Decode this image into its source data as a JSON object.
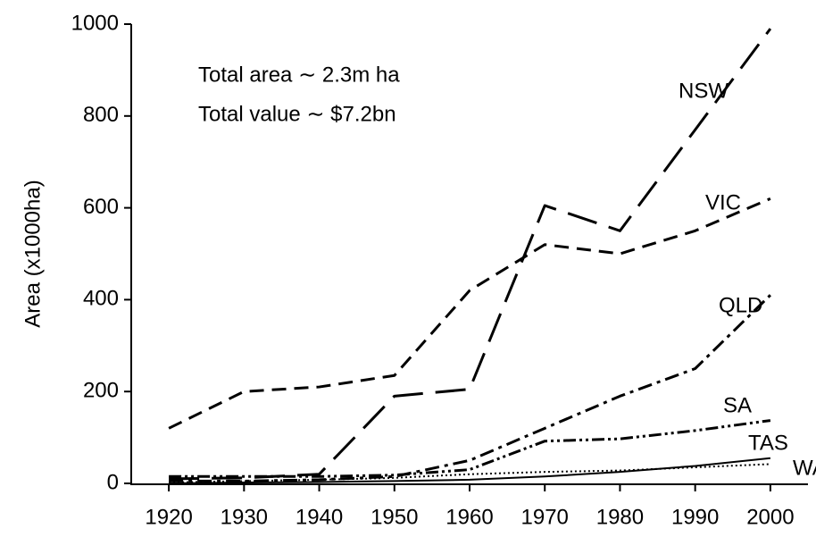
{
  "chart_data": {
    "type": "line",
    "y_label": "Area (x1000ha)",
    "annotations": [
      "Total area ∼ 2.3m ha",
      "Total value ∼ $7.2bn"
    ],
    "x": [
      1920,
      1930,
      1940,
      1950,
      1960,
      1970,
      1980,
      1990,
      2000
    ],
    "series": [
      {
        "name": "NSW",
        "color": "#000000",
        "dash": "34,14",
        "values": [
          10,
          12,
          20,
          190,
          205,
          605,
          550,
          770,
          990
        ]
      },
      {
        "name": "VIC",
        "color": "#000000",
        "dash": "16,9",
        "values": [
          120,
          200,
          210,
          235,
          420,
          520,
          500,
          550,
          620
        ]
      },
      {
        "name": "QLD",
        "color": "#000000",
        "dash": "16,6,4,6",
        "values": [
          5,
          5,
          8,
          15,
          50,
          120,
          190,
          250,
          410
        ]
      },
      {
        "name": "SA",
        "color": "#000000",
        "dash": "14,4,3,4,3,4",
        "values": [
          15,
          15,
          15,
          18,
          30,
          92,
          97,
          115,
          137
        ]
      },
      {
        "name": "TAS",
        "color": "#000000",
        "dash": "none",
        "values": [
          0,
          2,
          3,
          5,
          8,
          15,
          25,
          38,
          55
        ]
      },
      {
        "name": "WA",
        "color": "#000000",
        "dash": "2,3",
        "values": [
          2,
          5,
          8,
          12,
          20,
          25,
          28,
          35,
          42
        ]
      }
    ],
    "xlim": [
      1915,
      2005
    ],
    "xticks": [
      1920,
      1930,
      1940,
      1950,
      1960,
      1970,
      1980,
      1990,
      2000
    ],
    "ylim": [
      0,
      1000
    ],
    "yticks": [
      0,
      200,
      400,
      600,
      800,
      1000
    ],
    "grid": false
  }
}
